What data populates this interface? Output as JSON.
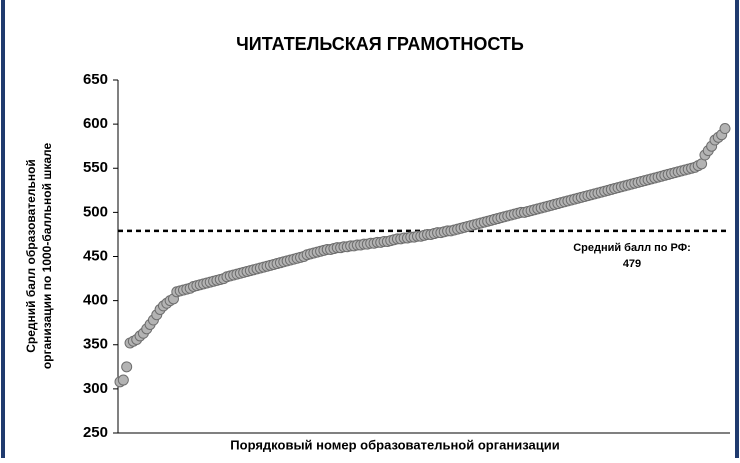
{
  "chart_data": {
    "type": "scatter",
    "title": "ЧИТАТЕЛЬСКАЯ ГРАМОТНОСТЬ",
    "y_label": [
      "Средний балл образовательной",
      "организации по 1000-балльной шкале"
    ],
    "x_label": "Порядковый номер образовательной организации",
    "ylim": [
      250,
      650
    ],
    "yticks": [
      250,
      300,
      350,
      400,
      450,
      500,
      550,
      600,
      650
    ],
    "color": "#b3b3b3",
    "reference": {
      "value": 479,
      "label": "Средний балл по РФ:"
    },
    "values": [
      308,
      310,
      325,
      352,
      354,
      356,
      360,
      363,
      368,
      373,
      378,
      384,
      390,
      394,
      397,
      400,
      402,
      410,
      411,
      412,
      413,
      414,
      416,
      417,
      418,
      419,
      420,
      421,
      422,
      423,
      424,
      425,
      427,
      428,
      429,
      430,
      431,
      432,
      433,
      434,
      435,
      436,
      437,
      438,
      439,
      440,
      441,
      442,
      443,
      444,
      445,
      446,
      447,
      448,
      449,
      450,
      452,
      453,
      454,
      455,
      456,
      457,
      458,
      458,
      459,
      460,
      460,
      461,
      461,
      462,
      462,
      463,
      463,
      464,
      464,
      465,
      465,
      466,
      466,
      467,
      467,
      468,
      469,
      470,
      470,
      471,
      471,
      472,
      472,
      473,
      473,
      474,
      475,
      475,
      476,
      477,
      477,
      478,
      479,
      479,
      480,
      481,
      482,
      483,
      484,
      485,
      486,
      487,
      488,
      489,
      490,
      491,
      492,
      493,
      494,
      495,
      496,
      497,
      498,
      499,
      500,
      500,
      501,
      502,
      503,
      504,
      505,
      506,
      507,
      508,
      509,
      510,
      511,
      512,
      513,
      514,
      515,
      516,
      517,
      518,
      519,
      520,
      521,
      522,
      523,
      524,
      525,
      526,
      527,
      528,
      529,
      530,
      531,
      532,
      533,
      534,
      535,
      536,
      537,
      538,
      539,
      540,
      541,
      542,
      543,
      544,
      545,
      546,
      547,
      548,
      549,
      550,
      551,
      553,
      555,
      565,
      570,
      575,
      582,
      585,
      588,
      595
    ]
  }
}
